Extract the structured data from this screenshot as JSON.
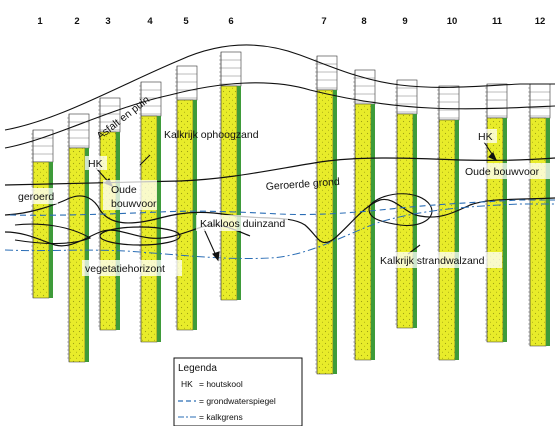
{
  "column_numbers": [
    "1",
    "2",
    "3",
    "4",
    "5",
    "6",
    "7",
    "8",
    "9",
    "10",
    "11",
    "12"
  ],
  "region_labels": {
    "asfalt": "Asfalt en puin",
    "kalkrijk_ophoog": "Kalkrijk ophoogzand",
    "hk_left": "HK",
    "oude_bouwvoor_left_1": "Oude",
    "oude_bouwvoor_left_2": "bouwvoor",
    "geroerd": "geroerd",
    "kalkloos": "Kalkloos duinzand",
    "vegetatie": "vegetatiehorizont",
    "geroerde_grond": "Geroerde grond",
    "hk_right": "HK",
    "oude_bouwvoor_right": "Oude bouwvoor",
    "kalkrijk_strandwal": "Kalkrijk strandwalzand"
  },
  "legend": {
    "title": "Legenda",
    "items": [
      {
        "key": "HK",
        "text": "= houtskool"
      },
      {
        "key": "",
        "text": "= grondwaterspiegel"
      },
      {
        "key": "",
        "text": "= kalkgrens"
      }
    ]
  },
  "colors": {
    "sand": "#e8ec2a",
    "sand_dark": "#c9cf1a",
    "green_strip": "#3e9b3a",
    "groundwater": "#2a6db5",
    "boundary": "#111111"
  }
}
